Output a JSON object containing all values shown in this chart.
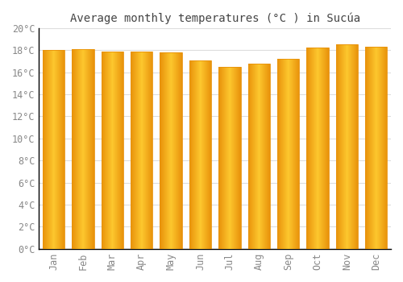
{
  "title": "Average monthly temperatures (°C ) in Sucúa",
  "months": [
    "Jan",
    "Feb",
    "Mar",
    "Apr",
    "May",
    "Jun",
    "Jul",
    "Aug",
    "Sep",
    "Oct",
    "Nov",
    "Dec"
  ],
  "values": [
    18.0,
    18.1,
    17.9,
    17.9,
    17.8,
    17.1,
    16.5,
    16.8,
    17.2,
    18.2,
    18.5,
    18.3
  ],
  "bar_color_center": "#FDB813",
  "bar_color_edge": "#E8920A",
  "background_color": "#FFFFFF",
  "grid_color": "#DDDDDD",
  "ylim": [
    0,
    20
  ],
  "ytick_step": 2,
  "title_fontsize": 10,
  "tick_fontsize": 8.5,
  "tick_color": "#888888",
  "title_color": "#444444"
}
